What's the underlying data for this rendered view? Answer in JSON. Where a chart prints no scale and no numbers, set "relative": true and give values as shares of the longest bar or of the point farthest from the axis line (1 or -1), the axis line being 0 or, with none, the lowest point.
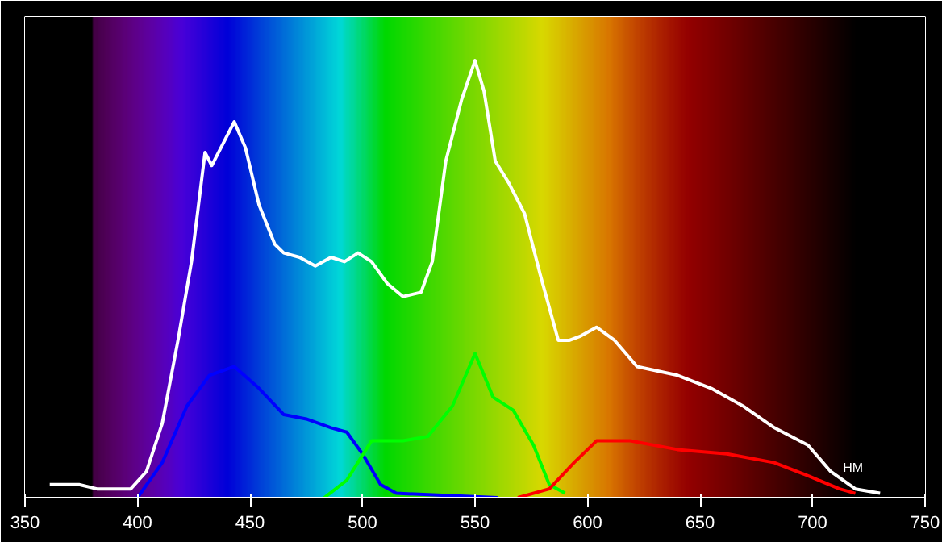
{
  "chart_data": {
    "type": "line",
    "relative": true,
    "xlabel": "НМ",
    "xlim": [
      350,
      750
    ],
    "xticks": [
      350,
      400,
      450,
      500,
      550,
      600,
      650,
      700,
      750
    ],
    "marker": "none",
    "line_style": "solid",
    "series": [
      {
        "color": "#ffffff",
        "x": [
          361,
          374,
          382,
          397,
          404,
          411,
          418,
          424,
          430,
          433,
          437,
          443,
          448,
          454,
          461,
          465,
          472,
          479,
          486,
          492,
          498,
          504,
          511,
          518,
          526,
          531,
          537,
          544,
          550,
          554,
          559,
          565,
          572,
          579,
          587,
          592,
          597,
          604,
          612,
          622,
          640,
          655,
          669,
          683,
          698,
          708,
          719,
          730
        ],
        "values": [
          0.03,
          0.03,
          0.02,
          0.02,
          0.06,
          0.17,
          0.36,
          0.54,
          0.79,
          0.76,
          0.8,
          0.86,
          0.8,
          0.67,
          0.58,
          0.56,
          0.55,
          0.53,
          0.55,
          0.54,
          0.56,
          0.54,
          0.49,
          0.46,
          0.47,
          0.54,
          0.77,
          0.91,
          1.0,
          0.93,
          0.77,
          0.72,
          0.65,
          0.51,
          0.36,
          0.36,
          0.37,
          0.39,
          0.36,
          0.3,
          0.28,
          0.25,
          0.21,
          0.16,
          0.12,
          0.06,
          0.02,
          0.01
        ]
      },
      {
        "color": "#0000ff",
        "x": [
          400,
          411,
          422,
          432,
          443,
          454,
          465,
          475,
          486,
          493,
          500,
          508,
          515,
          560
        ],
        "values": [
          0.0,
          0.08,
          0.21,
          0.28,
          0.3,
          0.25,
          0.19,
          0.18,
          0.16,
          0.15,
          0.1,
          0.03,
          0.01,
          0.0
        ]
      },
      {
        "color": "#00ff00",
        "x": [
          483,
          493,
          504,
          518,
          529,
          540,
          550,
          558,
          567,
          576,
          583,
          590
        ],
        "values": [
          0.0,
          0.04,
          0.13,
          0.13,
          0.14,
          0.21,
          0.33,
          0.23,
          0.2,
          0.12,
          0.03,
          0.01
        ]
      },
      {
        "color": "#ff0000",
        "x": [
          569,
          583,
          594,
          604,
          619,
          640,
          662,
          683,
          698,
          712,
          719
        ],
        "values": [
          0.0,
          0.02,
          0.08,
          0.13,
          0.13,
          0.11,
          0.1,
          0.08,
          0.05,
          0.02,
          0.01
        ]
      }
    ]
  }
}
